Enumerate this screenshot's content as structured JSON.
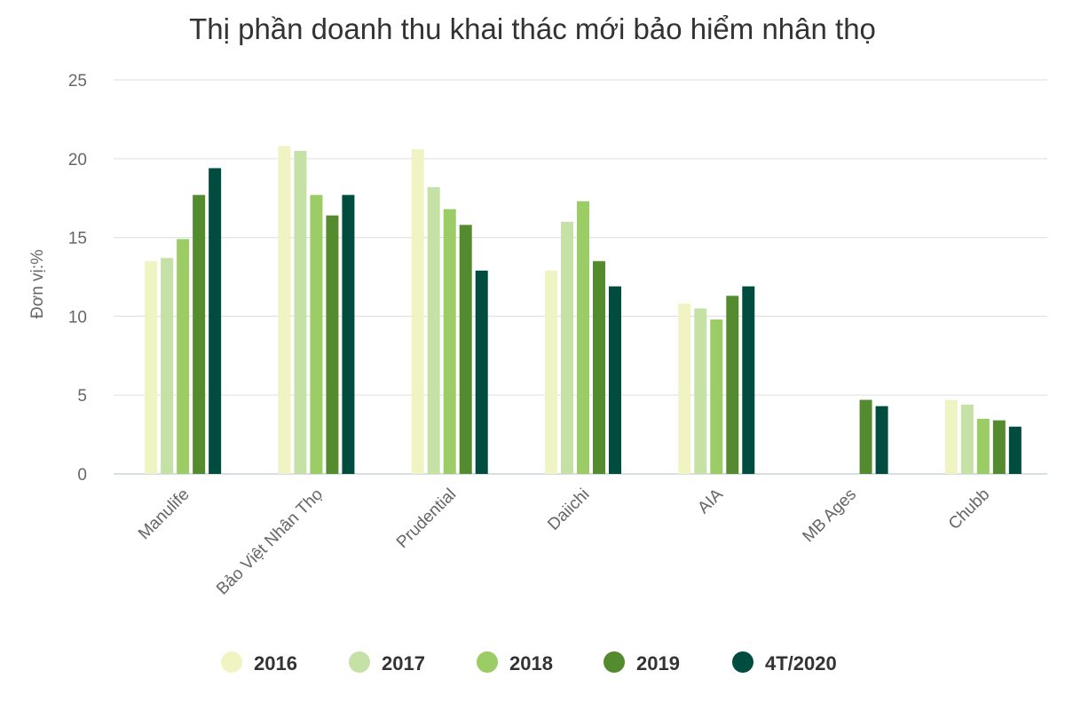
{
  "chart_data": {
    "type": "bar",
    "title": "Thị phần doanh thu khai thác mới bảo hiểm nhân thọ",
    "xlabel": "",
    "ylabel": "Đơn vị:%",
    "ylim": [
      0,
      25
    ],
    "yticks": [
      0,
      5,
      10,
      15,
      20,
      25
    ],
    "grid": true,
    "legend_position": "bottom",
    "categories": [
      "Manulife",
      "Bảo Việt Nhân Thọ",
      "Prudential",
      "Daiichi",
      "AIA",
      "MB Ages",
      "Chubb"
    ],
    "series": [
      {
        "name": "2016",
        "color": "#f0f4c3",
        "values": [
          13.5,
          20.8,
          20.6,
          12.9,
          10.8,
          null,
          4.7
        ]
      },
      {
        "name": "2017",
        "color": "#c5e1a5",
        "values": [
          13.7,
          20.5,
          18.2,
          16.0,
          10.5,
          null,
          4.4
        ]
      },
      {
        "name": "2018",
        "color": "#9ccc65",
        "values": [
          14.9,
          17.7,
          16.8,
          17.3,
          9.8,
          null,
          3.5
        ]
      },
      {
        "name": "2019",
        "color": "#558b2f",
        "values": [
          17.7,
          16.4,
          15.8,
          13.5,
          11.3,
          4.7,
          3.4
        ]
      },
      {
        "name": "4T/2020",
        "color": "#004d40",
        "values": [
          19.4,
          17.7,
          12.9,
          11.9,
          11.9,
          4.3,
          3.0
        ]
      }
    ]
  }
}
